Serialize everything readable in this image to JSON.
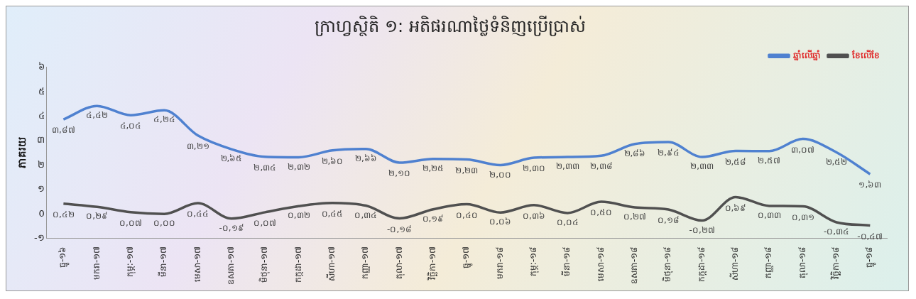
{
  "chart_data": {
    "type": "line",
    "title": "ក្រាហ្វស្ថិតិ ១: អតិផរណាថ្លៃទំនិញប្រើប្រាស់",
    "ylabel": "ភាគរយ",
    "categories": [
      "ធ្នូ-១៦",
      "មករា-១៧",
      "កុម្ភៈ-១៧",
      "មីនា-១៧",
      "មេសា-១៧",
      "ឧសភា-១៧",
      "មិថុនា-១៧",
      "កក្កដា-១៧",
      "សីហា-១៧",
      "កញ្ញា-១៧",
      "តុលា-១៧",
      "វិច្ឆិកា-១៧",
      "ធ្នូ-១៧",
      "មករា-១៨",
      "កុម្ភៈ-១៨",
      "មីនា-១៨",
      "មេសា-១៨",
      "ឧសភា-១៨",
      "មិថុនា-១៨",
      "កក្កដា-១៨",
      "សីហា-១៨",
      "កញ្ញា-១៨",
      "តុលា-១៨",
      "វិច្ឆិកា-១៨",
      "ធ្នូ-១៨"
    ],
    "series": [
      {
        "name": "ឆ្នាំលើឆ្នាំ",
        "color": "#4f81d0",
        "values": [
          3.87,
          4.42,
          4.04,
          4.24,
          3.21,
          2.65,
          2.34,
          2.32,
          2.6,
          2.66,
          2.1,
          2.25,
          2.23,
          2.0,
          2.3,
          2.33,
          2.38,
          2.86,
          2.94,
          2.33,
          2.58,
          2.57,
          3.07,
          2.52,
          1.63
        ],
        "value_labels": [
          "៣,៨៧",
          "៤,៤២",
          "៤,០៤",
          "៤,២៤",
          "៣,២១",
          "២,៦៥",
          "២,៣៤",
          "២,៣២",
          "២,៦០",
          "២,៦៦",
          "២,១០",
          "២,២៥",
          "២,២៣",
          "២,០០",
          "២,៣០",
          "២,៣៣",
          "២,៣៨",
          "២,៨៦",
          "២,៩៤",
          "២,៣៣",
          "២,៥៨",
          "២,៥៧",
          "៣,០៧",
          "២,៥២",
          "១,៦៣"
        ]
      },
      {
        "name": "ខែលើខែ",
        "color": "#505050",
        "values": [
          0.42,
          0.29,
          0.07,
          0.0,
          0.44,
          -0.19,
          0.07,
          0.32,
          0.45,
          0.34,
          -0.18,
          0.19,
          0.4,
          0.06,
          0.36,
          0.04,
          0.5,
          0.27,
          0.18,
          -0.27,
          0.69,
          0.33,
          0.31,
          -0.34,
          -0.47
        ],
        "value_labels": [
          "០,៤២",
          "០,២៩",
          "០,០៧",
          "០,០០",
          "០,៤៤",
          "-០,១៩",
          "០,០៧",
          "០,៣២",
          "០,៤៥",
          "០,៣៤",
          "-០,១៨",
          "០,១៩",
          "០,៤០",
          "០,០៦",
          "០,៣៦",
          "០,០៤",
          "០,៥០",
          "០,២៧",
          "០,១៨",
          "-០,២៧",
          "០,៦៩",
          "០,៣៣",
          "០,៣១",
          "-០,៣៤",
          "-០,៤៧"
        ]
      }
    ],
    "ylim": [
      -1,
      6
    ],
    "yticks": [
      {
        "value": -1,
        "label": "-១"
      },
      {
        "value": 0,
        "label": "0"
      },
      {
        "value": 1,
        "label": "១"
      },
      {
        "value": 2,
        "label": "២"
      },
      {
        "value": 3,
        "label": "៣"
      },
      {
        "value": 4,
        "label": "៤"
      },
      {
        "value": 5,
        "label": "៥"
      },
      {
        "value": 6,
        "label": "៦"
      }
    ],
    "grid": false,
    "legend": "top right",
    "marker": "none",
    "line_style": "solid"
  }
}
